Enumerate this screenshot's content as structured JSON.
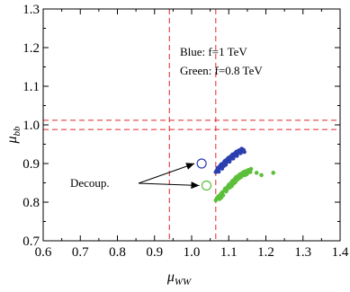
{
  "chart_data": {
    "type": "scatter",
    "title": "",
    "xlabel": "μ",
    "xlabel_sub": "WW",
    "ylabel": "μ",
    "ylabel_sub": "bb",
    "xlim": [
      0.6,
      1.4
    ],
    "ylim": [
      0.7,
      1.3
    ],
    "xticks": [
      0.6,
      0.7,
      0.8,
      0.9,
      1.0,
      1.1,
      1.2,
      1.3,
      1.4
    ],
    "xtick_labels": [
      "0.6",
      "0.7",
      "0.8",
      "0.9",
      "1.0",
      "1.1",
      "1.2",
      "1.3",
      "1.4"
    ],
    "yticks": [
      0.7,
      0.8,
      0.9,
      1.0,
      1.1,
      1.2,
      1.3
    ],
    "ytick_labels": [
      "0.7",
      "0.8",
      "0.9",
      "1.0",
      "1.1",
      "1.2",
      "1.3"
    ],
    "grid": false,
    "colors": {
      "blue": "#2b3fb0",
      "green": "#5cbf3a",
      "red": "#e0262a"
    },
    "reference_lines": {
      "vertical": [
        0.94,
        1.065
      ],
      "horizontal": [
        0.988,
        1.012
      ]
    },
    "series": [
      {
        "color": "blue",
        "points": [
          [
            1.065,
            0.878
          ],
          [
            1.068,
            0.882
          ],
          [
            1.07,
            0.888
          ],
          [
            1.072,
            0.885
          ],
          [
            1.075,
            0.892
          ],
          [
            1.078,
            0.895
          ],
          [
            1.08,
            0.898
          ],
          [
            1.083,
            0.893
          ],
          [
            1.085,
            0.9
          ],
          [
            1.088,
            0.904
          ],
          [
            1.09,
            0.907
          ],
          [
            1.093,
            0.902
          ],
          [
            1.095,
            0.91
          ],
          [
            1.098,
            0.913
          ],
          [
            1.1,
            0.915
          ],
          [
            1.103,
            0.91
          ],
          [
            1.105,
            0.918
          ],
          [
            1.108,
            0.92
          ],
          [
            1.11,
            0.923
          ],
          [
            1.113,
            0.918
          ],
          [
            1.115,
            0.925
          ],
          [
            1.118,
            0.927
          ],
          [
            1.12,
            0.93
          ],
          [
            1.123,
            0.925
          ],
          [
            1.125,
            0.932
          ],
          [
            1.128,
            0.934
          ],
          [
            1.13,
            0.93
          ],
          [
            1.133,
            0.936
          ],
          [
            1.135,
            0.938
          ],
          [
            1.138,
            0.933
          ],
          [
            1.14,
            0.935
          ],
          [
            1.073,
            0.879
          ],
          [
            1.082,
            0.887
          ],
          [
            1.092,
            0.897
          ],
          [
            1.102,
            0.905
          ],
          [
            1.112,
            0.913
          ],
          [
            1.122,
            0.92
          ],
          [
            1.132,
            0.927
          ],
          [
            1.142,
            0.93
          ],
          [
            1.087,
            0.894
          ]
        ]
      },
      {
        "color": "green",
        "points": [
          [
            1.065,
            0.805
          ],
          [
            1.068,
            0.81
          ],
          [
            1.072,
            0.815
          ],
          [
            1.075,
            0.808
          ],
          [
            1.078,
            0.82
          ],
          [
            1.082,
            0.825
          ],
          [
            1.085,
            0.818
          ],
          [
            1.088,
            0.83
          ],
          [
            1.09,
            0.835
          ],
          [
            1.093,
            0.828
          ],
          [
            1.097,
            0.84
          ],
          [
            1.1,
            0.845
          ],
          [
            1.103,
            0.838
          ],
          [
            1.106,
            0.85
          ],
          [
            1.11,
            0.855
          ],
          [
            1.113,
            0.848
          ],
          [
            1.116,
            0.86
          ],
          [
            1.12,
            0.865
          ],
          [
            1.123,
            0.858
          ],
          [
            1.126,
            0.868
          ],
          [
            1.13,
            0.872
          ],
          [
            1.133,
            0.865
          ],
          [
            1.136,
            0.875
          ],
          [
            1.14,
            0.878
          ],
          [
            1.143,
            0.87
          ],
          [
            1.146,
            0.88
          ],
          [
            1.15,
            0.875
          ],
          [
            1.153,
            0.883
          ],
          [
            1.158,
            0.878
          ],
          [
            1.16,
            0.886
          ],
          [
            1.08,
            0.812
          ],
          [
            1.095,
            0.832
          ],
          [
            1.108,
            0.842
          ],
          [
            1.118,
            0.852
          ],
          [
            1.128,
            0.862
          ],
          [
            1.138,
            0.87
          ],
          [
            1.148,
            0.872
          ],
          [
            1.175,
            0.876
          ],
          [
            1.188,
            0.87
          ],
          [
            1.22,
            0.876
          ]
        ]
      }
    ],
    "decoupling_points": [
      {
        "color": "blue",
        "x": 1.027,
        "y": 0.9
      },
      {
        "color": "green",
        "x": 1.04,
        "y": 0.843
      }
    ],
    "annotations": {
      "legend_line1": "Blue: f=1 TeV",
      "legend_line2": "Green: f=0.8 TeV",
      "decoup_label": "Decoup."
    }
  }
}
